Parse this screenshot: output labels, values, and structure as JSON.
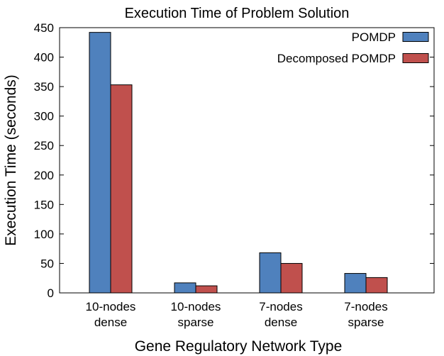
{
  "chart_data": {
    "type": "bar",
    "title": "Execution Time of Problem Solution",
    "xlabel": "Gene Regulatory Network Type",
    "ylabel": "Execution Time (seconds)",
    "ylim": [
      0,
      450
    ],
    "yticks": [
      0,
      50,
      100,
      150,
      200,
      250,
      300,
      350,
      400,
      450
    ],
    "categories": [
      [
        "10-nodes",
        "dense"
      ],
      [
        "10-nodes",
        "sparse"
      ],
      [
        "7-nodes",
        "dense"
      ],
      [
        "7-nodes",
        "sparse"
      ]
    ],
    "series": [
      {
        "name": "POMDP",
        "color": "#4f81bd",
        "values": [
          442,
          17,
          68,
          33
        ]
      },
      {
        "name": "Decomposed POMDP",
        "color": "#c0504d",
        "values": [
          353,
          12,
          50,
          26
        ]
      }
    ],
    "legend_position": "top-right",
    "grid": false
  }
}
